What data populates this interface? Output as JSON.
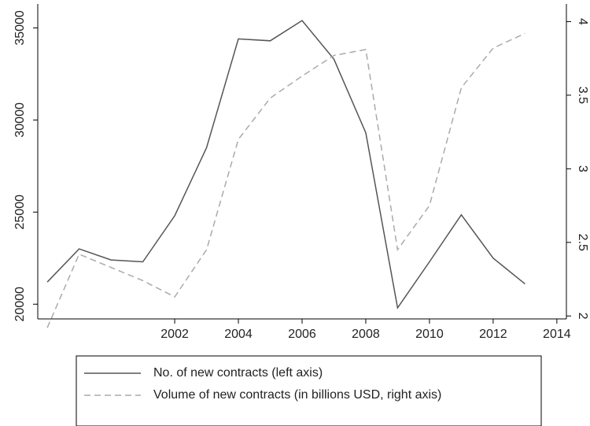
{
  "chart_data": {
    "type": "line",
    "x": [
      1998,
      1999,
      2000,
      2001,
      2002,
      2003,
      2004,
      2005,
      2006,
      2007,
      2008,
      2009,
      2010,
      2011,
      2012,
      2013
    ],
    "series": [
      {
        "name": "No. of new contracts (left axis)",
        "color": "#555555",
        "dash": false,
        "values": [
          21200,
          23000,
          22400,
          22300,
          24800,
          28500,
          34400,
          34300,
          35400,
          33300,
          29300,
          19800,
          22300,
          24850,
          22500,
          21100
        ]
      },
      {
        "name": "Volume of new contracts (in billions USD, right axis)",
        "color": "#aaaaaa",
        "dash": true,
        "axis": "y2",
        "values": [
          1.92,
          2.42,
          2.33,
          2.24,
          2.13,
          2.45,
          3.2,
          3.48,
          3.63,
          3.77,
          3.81,
          2.45,
          2.75,
          3.55,
          3.82,
          3.92
        ]
      }
    ],
    "xlim": [
      1997.7,
      2014.3
    ],
    "xticks": [
      2002,
      2004,
      2006,
      2008,
      2010,
      2012,
      2014
    ],
    "ylim": [
      19200,
      36300
    ],
    "yticks": [
      20000,
      25000,
      30000,
      35000
    ],
    "y2lim": [
      1.98,
      4.12
    ],
    "y2ticks": [
      2,
      2.5,
      3,
      3.5,
      4
    ],
    "legend": "bottom"
  }
}
